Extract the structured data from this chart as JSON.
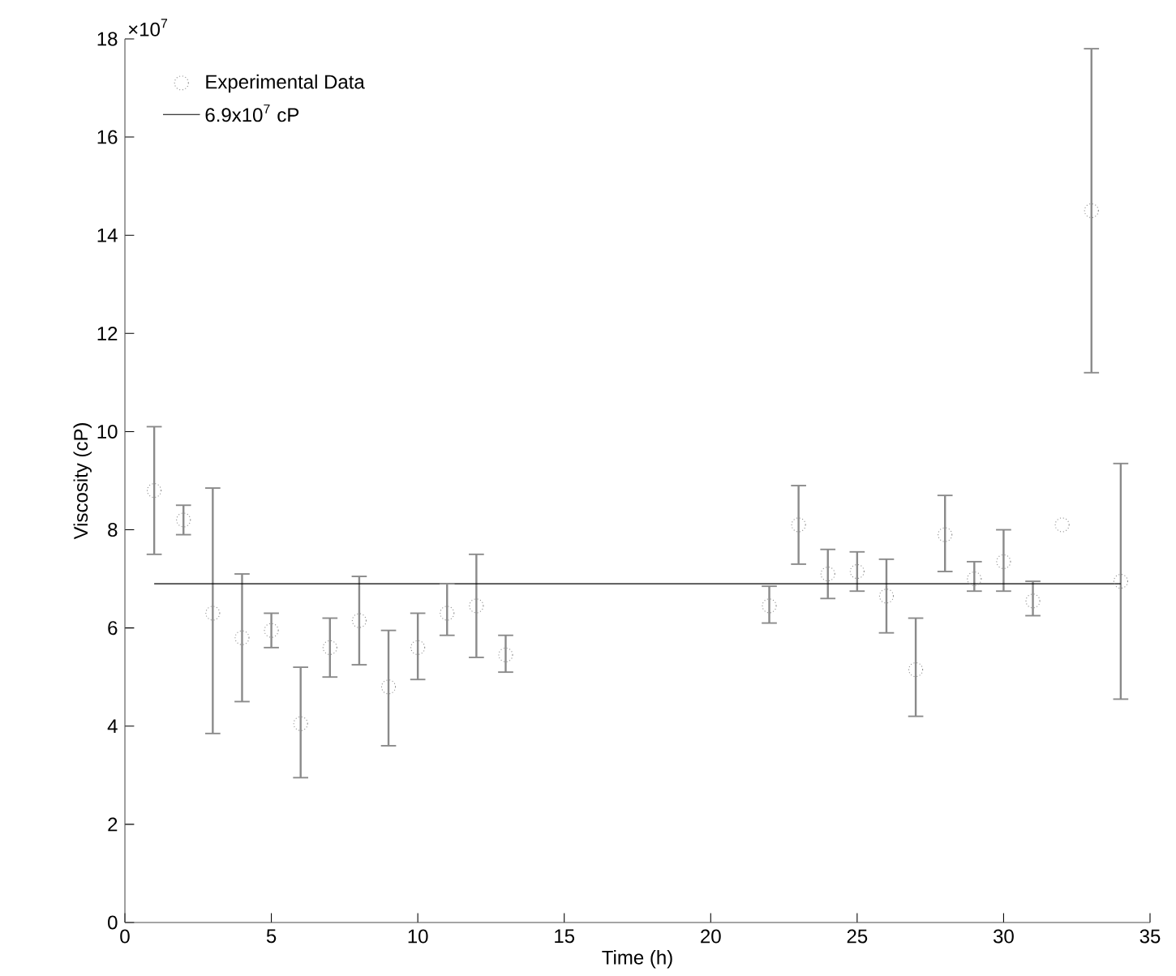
{
  "chart_data": {
    "type": "scatter",
    "xlabel": "Time (h)",
    "ylabel": "Viscosity (cP)",
    "annotations": [
      "×10$^{7}$"
    ],
    "xlim": [
      0,
      35
    ],
    "xticks": [
      0,
      5,
      10,
      15,
      20,
      25,
      30,
      35
    ],
    "ylim": [
      0,
      18
    ],
    "yticks": [
      0,
      2,
      4,
      6,
      8,
      10,
      12,
      14,
      16,
      18
    ],
    "grid": false,
    "legend": "top left",
    "marker": "circle",
    "series": [
      {
        "name": "Experimental Data",
        "color": "#8a8a8a",
        "x": [
          1,
          2,
          3,
          4,
          5,
          6,
          7,
          8,
          9,
          10,
          11,
          12,
          13,
          22,
          23,
          24,
          25,
          26,
          27,
          28,
          29,
          30,
          31,
          32,
          33,
          34
        ],
        "values": [
          8.8,
          8.2,
          6.3,
          5.8,
          5.95,
          4.05,
          5.6,
          6.15,
          4.8,
          5.6,
          6.3,
          6.45,
          5.45,
          6.45,
          8.1,
          7.1,
          7.15,
          6.65,
          5.15,
          7.9,
          7.0,
          7.35,
          6.55,
          8.1,
          14.5,
          6.95
        ],
        "errors": [
          [
            7.5,
            10.1
          ],
          [
            7.9,
            8.5
          ],
          [
            3.85,
            8.85
          ],
          [
            4.5,
            7.1
          ],
          [
            5.6,
            6.3
          ],
          [
            2.95,
            5.2
          ],
          [
            5.0,
            6.2
          ],
          [
            5.25,
            7.05
          ],
          [
            3.6,
            5.95
          ],
          [
            4.95,
            6.3
          ],
          [
            5.85,
            6.9
          ],
          [
            5.4,
            7.5
          ],
          [
            5.1,
            5.85
          ],
          [
            6.1,
            6.85
          ],
          [
            7.3,
            8.9
          ],
          [
            6.6,
            7.6
          ],
          [
            6.75,
            7.55
          ],
          [
            5.9,
            7.4
          ],
          [
            4.2,
            6.2
          ],
          [
            7.15,
            8.7
          ],
          [
            6.75,
            7.35
          ],
          [
            6.75,
            8.0
          ],
          [
            6.25,
            6.95
          ],
          null,
          [
            11.2,
            17.8
          ],
          [
            4.55,
            9.35
          ]
        ]
      },
      {
        "name": "6.9x10$^{7}$ cP",
        "type": "line",
        "color": "#000000",
        "marker": "none",
        "line_style": "solid",
        "x": [
          1,
          34
        ],
        "values": [
          6.9,
          6.9
        ]
      }
    ]
  }
}
